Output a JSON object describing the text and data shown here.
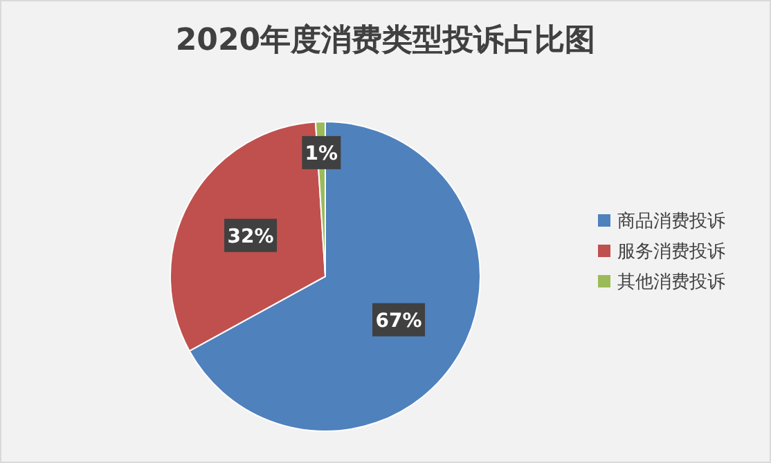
{
  "chart_data": {
    "type": "pie",
    "title": "2020年度消费类型投诉占比图",
    "categories": [
      "商品消费投诉",
      "服务消费投诉",
      "其他消费投诉"
    ],
    "values": [
      67,
      32,
      1
    ],
    "colors": [
      "#4f81bd",
      "#c0504d",
      "#9bbb59"
    ],
    "value_labels": [
      "67%",
      "32%",
      "1%"
    ],
    "legend": "right"
  }
}
